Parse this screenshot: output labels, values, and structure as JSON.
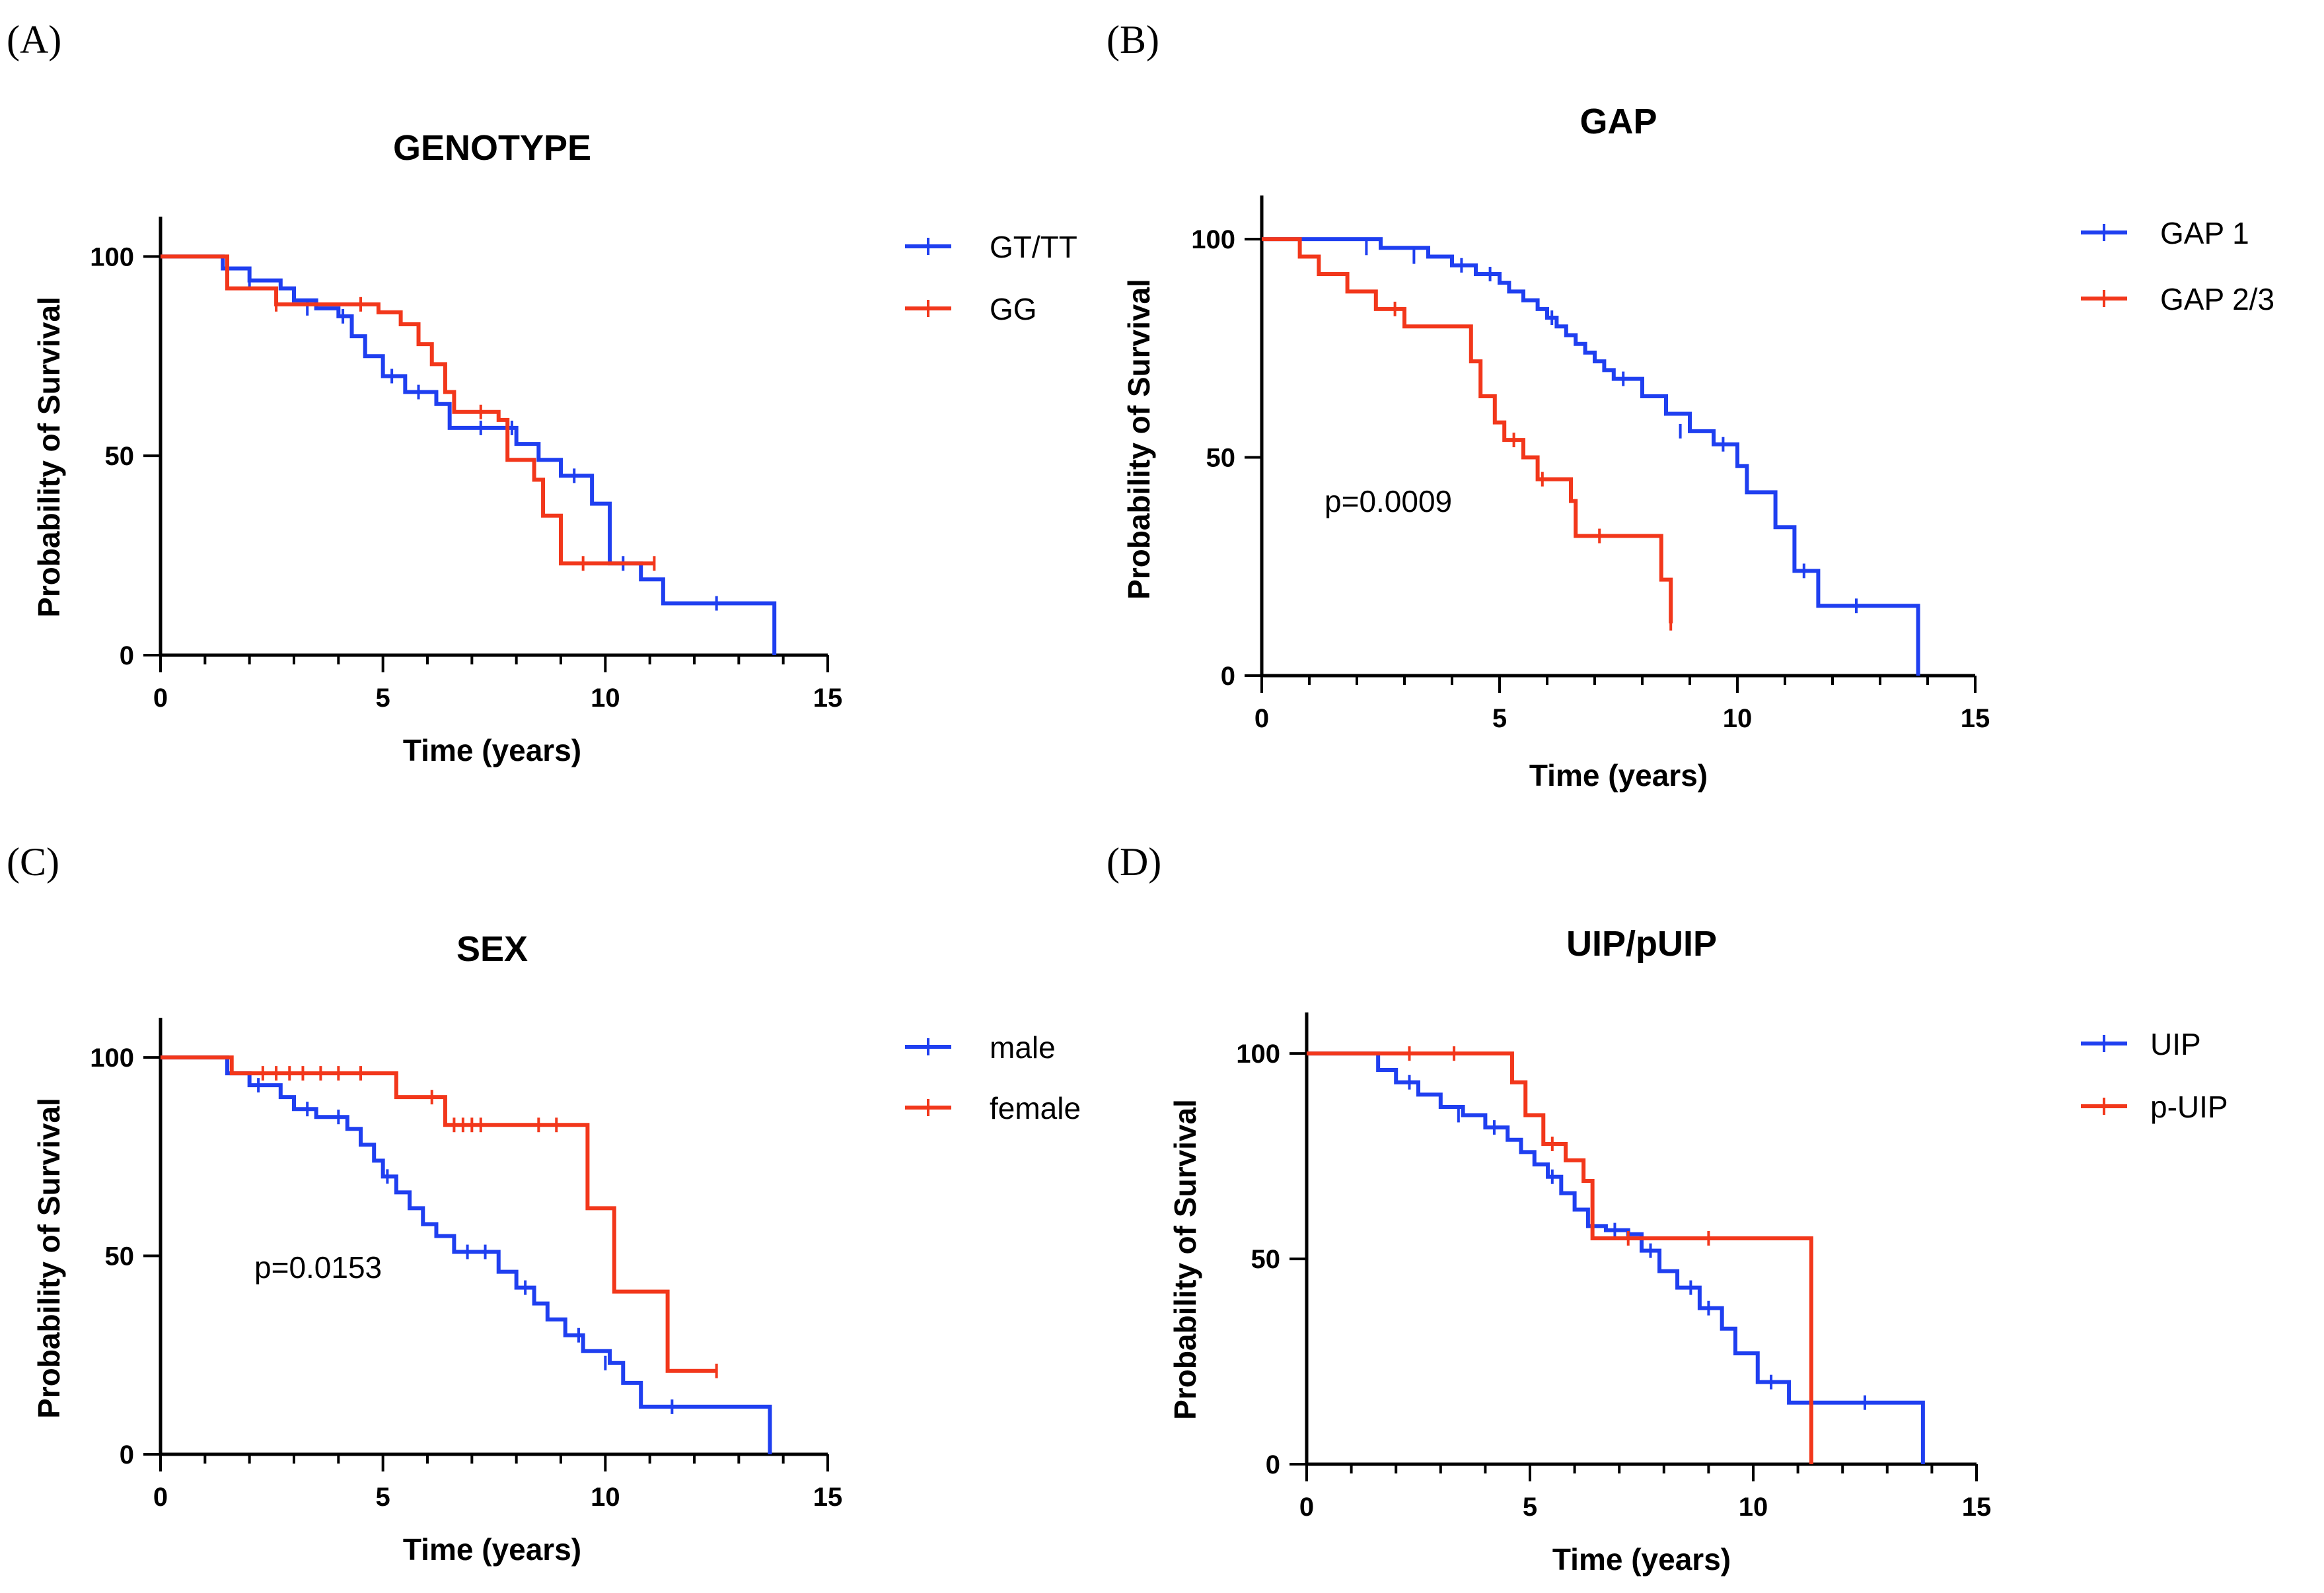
{
  "colors": {
    "blue": "#1f3ff0",
    "red": "#f2371b"
  },
  "chart_data": [
    {
      "type": "line",
      "panel_label": "(A)",
      "title": "GENOTYPE",
      "xlabel": "Time (years)",
      "ylabel": "Probability of Survival",
      "xlim": [
        0,
        15
      ],
      "ylim": [
        0,
        110
      ],
      "xticks": [
        0,
        5,
        10,
        15
      ],
      "yticks": [
        0,
        50,
        100
      ],
      "x_tick_labels": [
        "0",
        "5",
        "10",
        "15"
      ],
      "y_tick_labels": [
        "0",
        "50",
        "100"
      ],
      "annotation": "",
      "series": [
        {
          "name": "GT/TT",
          "color": "#1f3ff0",
          "points": [
            [
              0,
              100
            ],
            [
              1.2,
              100
            ],
            [
              1.4,
              97
            ],
            [
              2,
              94
            ],
            [
              2.7,
              92
            ],
            [
              3,
              89
            ],
            [
              3.5,
              87
            ],
            [
              4,
              85
            ],
            [
              4.3,
              80
            ],
            [
              4.6,
              75
            ],
            [
              5,
              70
            ],
            [
              5.5,
              66
            ],
            [
              6.2,
              63
            ],
            [
              6.5,
              57
            ],
            [
              7.5,
              57
            ],
            [
              8,
              53
            ],
            [
              8.5,
              49
            ],
            [
              9,
              45
            ],
            [
              9.7,
              38
            ],
            [
              10.1,
              23
            ],
            [
              10.8,
              19
            ],
            [
              11.3,
              13
            ],
            [
              13.8,
              13
            ],
            [
              13.8,
              0
            ]
          ],
          "censor": [
            [
              2,
              94
            ],
            [
              3.3,
              87
            ],
            [
              4.1,
              85
            ],
            [
              5.2,
              70
            ],
            [
              5.8,
              66
            ],
            [
              7.2,
              57
            ],
            [
              7.9,
              57
            ],
            [
              9.3,
              45
            ],
            [
              10.4,
              23
            ],
            [
              12.5,
              13
            ]
          ]
        },
        {
          "name": "GG",
          "color": "#f2371b",
          "points": [
            [
              0,
              100
            ],
            [
              1.3,
              100
            ],
            [
              1.5,
              92
            ],
            [
              2.6,
              88
            ],
            [
              4,
              88
            ],
            [
              4.9,
              86
            ],
            [
              5.4,
              83
            ],
            [
              5.8,
              78
            ],
            [
              6.1,
              73
            ],
            [
              6.4,
              66
            ],
            [
              6.6,
              61
            ],
            [
              7.4,
              61
            ],
            [
              7.6,
              59
            ],
            [
              7.8,
              49
            ],
            [
              8.4,
              44
            ],
            [
              8.6,
              35
            ],
            [
              9,
              23
            ],
            [
              10,
              23
            ],
            [
              11.1,
              23
            ]
          ],
          "censor": [
            [
              2.6,
              88
            ],
            [
              4.5,
              88
            ],
            [
              7.2,
              61
            ],
            [
              9.5,
              23
            ],
            [
              11.1,
              23
            ]
          ]
        }
      ]
    },
    {
      "type": "line",
      "panel_label": "(B)",
      "title": "GAP",
      "xlabel": "Time (years)",
      "ylabel": "Probability of Survival",
      "xlim": [
        0,
        15
      ],
      "ylim": [
        0,
        110
      ],
      "xticks": [
        0,
        5,
        10,
        15
      ],
      "yticks": [
        0,
        50,
        100
      ],
      "x_tick_labels": [
        "0",
        "5",
        "10",
        "15"
      ],
      "y_tick_labels": [
        "0",
        "50",
        "100"
      ],
      "annotation": "p=0.0009",
      "series": [
        {
          "name": "GAP 1",
          "color": "#1f3ff0",
          "points": [
            [
              0,
              100
            ],
            [
              1.5,
              100
            ],
            [
              2.5,
              98
            ],
            [
              3.5,
              96
            ],
            [
              4,
              94
            ],
            [
              4.5,
              92
            ],
            [
              5,
              90
            ],
            [
              5.2,
              88
            ],
            [
              5.5,
              86
            ],
            [
              5.8,
              84
            ],
            [
              6,
              82
            ],
            [
              6.2,
              80
            ],
            [
              6.4,
              78
            ],
            [
              6.6,
              76
            ],
            [
              6.8,
              74
            ],
            [
              7,
              72
            ],
            [
              7.2,
              70
            ],
            [
              7.4,
              68
            ],
            [
              8,
              64
            ],
            [
              8.5,
              60
            ],
            [
              9,
              56
            ],
            [
              9.5,
              53
            ],
            [
              10,
              48
            ],
            [
              10.2,
              42
            ],
            [
              10.8,
              34
            ],
            [
              11.2,
              24
            ],
            [
              11.7,
              16
            ],
            [
              13.8,
              16
            ],
            [
              13.8,
              0
            ]
          ],
          "censor": [
            [
              2.2,
              98
            ],
            [
              3.2,
              96
            ],
            [
              4.2,
              94
            ],
            [
              4.8,
              92
            ],
            [
              6.1,
              82
            ],
            [
              7.6,
              68
            ],
            [
              8.8,
              56
            ],
            [
              9.7,
              53
            ],
            [
              11.4,
              24
            ],
            [
              12.5,
              16
            ]
          ]
        },
        {
          "name": "GAP 2/3",
          "color": "#f2371b",
          "points": [
            [
              0,
              100
            ],
            [
              0.6,
              100
            ],
            [
              0.8,
              96
            ],
            [
              1.2,
              92
            ],
            [
              1.8,
              88
            ],
            [
              2.4,
              84
            ],
            [
              3,
              80
            ],
            [
              4.3,
              80
            ],
            [
              4.4,
              72
            ],
            [
              4.6,
              64
            ],
            [
              4.9,
              58
            ],
            [
              5.1,
              54
            ],
            [
              5.5,
              50
            ],
            [
              5.8,
              45
            ],
            [
              6.5,
              40
            ],
            [
              6.6,
              32
            ],
            [
              8.3,
              32
            ],
            [
              8.4,
              22
            ],
            [
              8.6,
              12
            ]
          ],
          "censor": [
            [
              2.8,
              84
            ],
            [
              5.3,
              54
            ],
            [
              5.9,
              45
            ],
            [
              7.1,
              32
            ],
            [
              8.6,
              12
            ]
          ]
        }
      ]
    },
    {
      "type": "line",
      "panel_label": "(C)",
      "title": "SEX",
      "xlabel": "Time (years)",
      "ylabel": "Probability of Survival",
      "xlim": [
        0,
        15
      ],
      "ylim": [
        0,
        110
      ],
      "xticks": [
        0,
        5,
        10,
        15
      ],
      "yticks": [
        0,
        50,
        100
      ],
      "x_tick_labels": [
        "0",
        "5",
        "10",
        "15"
      ],
      "y_tick_labels": [
        "0",
        "50",
        "100"
      ],
      "annotation": "p=0.0153",
      "series": [
        {
          "name": "male",
          "color": "#1f3ff0",
          "points": [
            [
              0,
              100
            ],
            [
              1.2,
              100
            ],
            [
              1.5,
              96
            ],
            [
              2,
              93
            ],
            [
              2.7,
              90
            ],
            [
              3,
              87
            ],
            [
              3.5,
              85
            ],
            [
              4.2,
              82
            ],
            [
              4.5,
              78
            ],
            [
              4.8,
              74
            ],
            [
              5,
              70
            ],
            [
              5.3,
              66
            ],
            [
              5.6,
              62
            ],
            [
              5.9,
              58
            ],
            [
              6.2,
              55
            ],
            [
              6.6,
              51
            ],
            [
              7.4,
              51
            ],
            [
              7.6,
              46
            ],
            [
              8,
              42
            ],
            [
              8.4,
              38
            ],
            [
              8.7,
              34
            ],
            [
              9.1,
              30
            ],
            [
              9.5,
              26
            ],
            [
              10.1,
              23
            ],
            [
              10.4,
              18
            ],
            [
              10.8,
              12
            ],
            [
              13.7,
              12
            ],
            [
              13.7,
              0
            ]
          ],
          "censor": [
            [
              2.2,
              93
            ],
            [
              3.3,
              87
            ],
            [
              4,
              85
            ],
            [
              5.1,
              70
            ],
            [
              6.9,
              51
            ],
            [
              7.3,
              51
            ],
            [
              8.2,
              42
            ],
            [
              9.4,
              30
            ],
            [
              10,
              23
            ],
            [
              11.5,
              12
            ]
          ]
        },
        {
          "name": "female",
          "color": "#f2371b",
          "points": [
            [
              0,
              100
            ],
            [
              1.3,
              100
            ],
            [
              1.6,
              96
            ],
            [
              5.2,
              96
            ],
            [
              5.3,
              90
            ],
            [
              6.3,
              90
            ],
            [
              6.4,
              83
            ],
            [
              9.5,
              83
            ],
            [
              9.6,
              62
            ],
            [
              10.1,
              62
            ],
            [
              10.2,
              41
            ],
            [
              11.3,
              41
            ],
            [
              11.4,
              21
            ],
            [
              12.5,
              21
            ]
          ],
          "censor": [
            [
              2.3,
              96
            ],
            [
              2.6,
              96
            ],
            [
              2.9,
              96
            ],
            [
              3.2,
              96
            ],
            [
              3.6,
              96
            ],
            [
              4,
              96
            ],
            [
              4.5,
              96
            ],
            [
              6.1,
              90
            ],
            [
              6.6,
              83
            ],
            [
              6.8,
              83
            ],
            [
              7,
              83
            ],
            [
              7.2,
              83
            ],
            [
              8.5,
              83
            ],
            [
              8.9,
              83
            ],
            [
              12.5,
              21
            ]
          ]
        }
      ]
    },
    {
      "type": "line",
      "panel_label": "(D)",
      "title": "UIP/pUIP",
      "xlabel": "Time (years)",
      "ylabel": "Probability of Survival",
      "xlim": [
        0,
        15
      ],
      "ylim": [
        0,
        110
      ],
      "xticks": [
        0,
        5,
        10,
        15
      ],
      "yticks": [
        0,
        50,
        100
      ],
      "x_tick_labels": [
        "0",
        "5",
        "10",
        "15"
      ],
      "y_tick_labels": [
        "0",
        "50",
        "100"
      ],
      "annotation": "",
      "series": [
        {
          "name": "UIP",
          "color": "#1f3ff0",
          "points": [
            [
              0,
              100
            ],
            [
              1.2,
              100
            ],
            [
              1.6,
              96
            ],
            [
              2,
              93
            ],
            [
              2.5,
              90
            ],
            [
              3,
              87
            ],
            [
              3.5,
              85
            ],
            [
              4,
              82
            ],
            [
              4.5,
              79
            ],
            [
              4.8,
              76
            ],
            [
              5.1,
              73
            ],
            [
              5.4,
              70
            ],
            [
              5.7,
              66
            ],
            [
              6,
              62
            ],
            [
              6.3,
              58
            ],
            [
              6.7,
              57
            ],
            [
              7.2,
              56
            ],
            [
              7.5,
              52
            ],
            [
              7.9,
              47
            ],
            [
              8.3,
              43
            ],
            [
              8.8,
              38
            ],
            [
              9.3,
              33
            ],
            [
              9.6,
              27
            ],
            [
              10.1,
              20
            ],
            [
              10.8,
              15
            ],
            [
              13.8,
              15
            ],
            [
              13.8,
              0
            ]
          ],
          "censor": [
            [
              2.3,
              93
            ],
            [
              3.4,
              85
            ],
            [
              4.2,
              82
            ],
            [
              5.5,
              70
            ],
            [
              6.9,
              57
            ],
            [
              7.7,
              52
            ],
            [
              8.6,
              43
            ],
            [
              9,
              38
            ],
            [
              10.4,
              20
            ],
            [
              12.5,
              15
            ]
          ]
        },
        {
          "name": "p-UIP",
          "color": "#f2371b",
          "points": [
            [
              0,
              100
            ],
            [
              1.3,
              100
            ],
            [
              4.4,
              100
            ],
            [
              4.6,
              93
            ],
            [
              4.9,
              85
            ],
            [
              5.3,
              78
            ],
            [
              5.8,
              74
            ],
            [
              6.2,
              69
            ],
            [
              6.4,
              55
            ],
            [
              11.3,
              55
            ],
            [
              11.3,
              0
            ]
          ],
          "censor": [
            [
              2.3,
              100
            ],
            [
              3.3,
              100
            ],
            [
              5.5,
              78
            ],
            [
              7.2,
              55
            ],
            [
              9,
              55
            ]
          ]
        }
      ]
    }
  ]
}
